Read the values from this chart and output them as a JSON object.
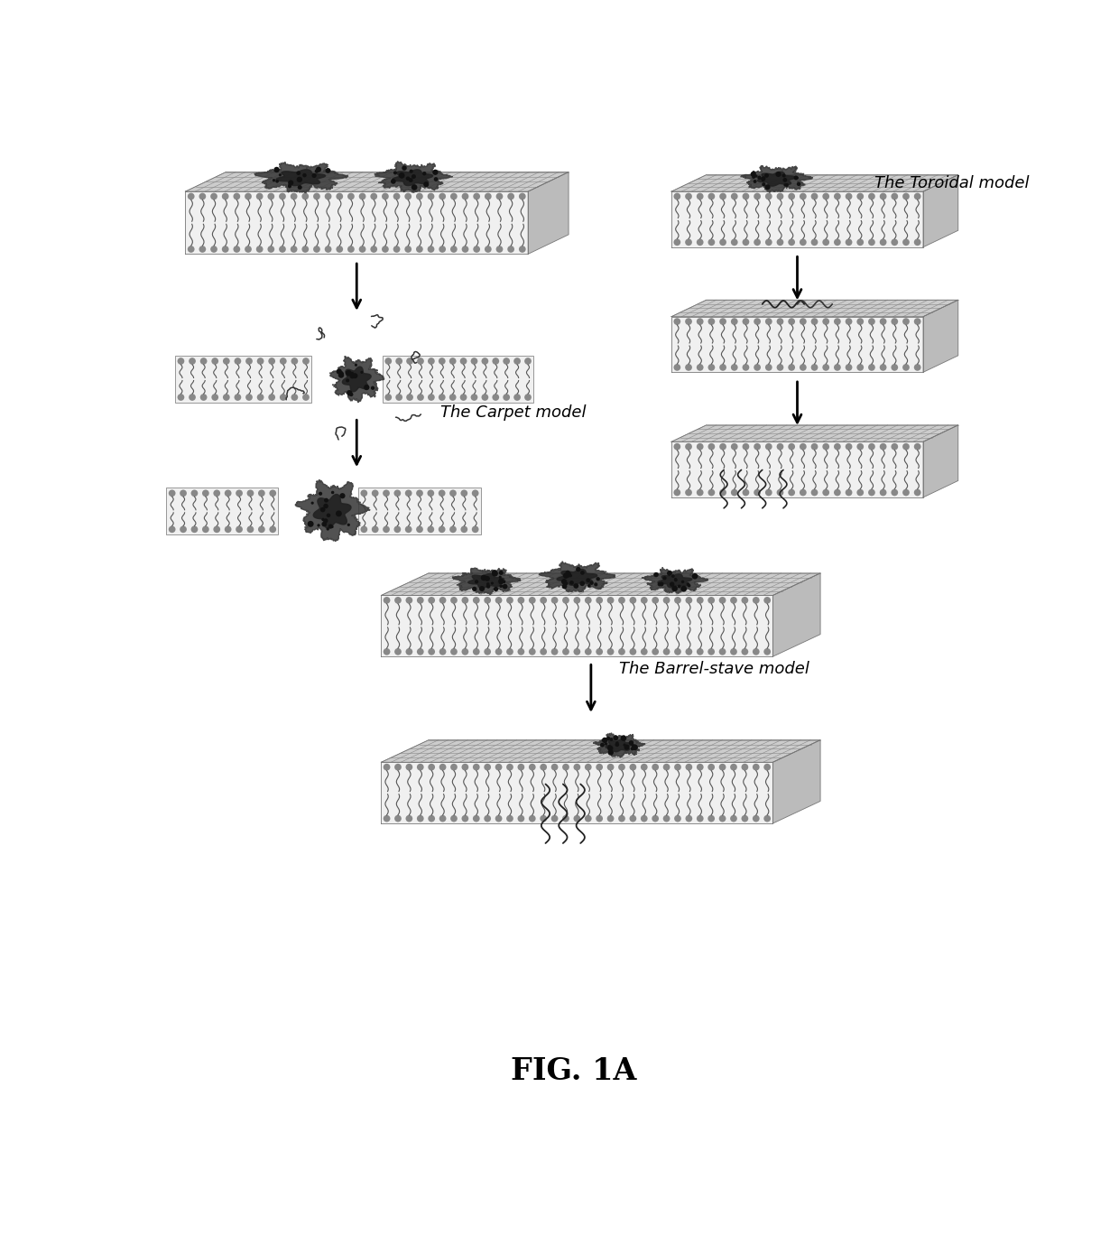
{
  "title": "FIG. 1A",
  "title_fontsize": 24,
  "bg_color": "#ffffff",
  "text_color": "#000000",
  "labels": {
    "carpet": "The Carpet model",
    "toroidal": "The Toroidal model",
    "barrel": "The Barrel-stave model"
  },
  "label_fontsize": 13,
  "head_color": "#999999",
  "tail_color": "#555555",
  "grid_color_top": "#aaaaaa",
  "grid_color_dark": "#777777",
  "peptide_dark": "#2a2a2a",
  "peptide_mid": "#555555"
}
